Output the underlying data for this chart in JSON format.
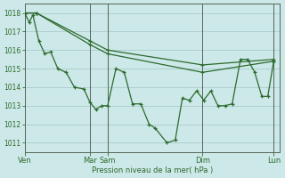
{
  "bg_color": "#cce8e8",
  "grid_color": "#aacccc",
  "line_color": "#2d6a2d",
  "xlabel": "Pression niveau de la mer( hPa )",
  "ylim": [
    1010.5,
    1018.5
  ],
  "yticks": [
    1011,
    1012,
    1013,
    1014,
    1015,
    1016,
    1017,
    1018
  ],
  "xtick_labels": [
    "Ven",
    "Mar",
    "Sam",
    "Dim",
    "Lun"
  ],
  "xtick_positions": [
    0,
    55,
    70,
    150,
    210
  ],
  "series1_x": [
    0,
    4,
    7,
    12,
    17,
    22,
    28,
    35,
    42,
    50,
    55,
    60,
    65,
    70,
    77,
    84,
    91,
    98,
    105,
    110,
    120,
    127,
    133,
    139,
    145,
    151,
    157,
    163,
    169,
    175,
    182,
    188,
    194,
    200,
    205,
    210
  ],
  "series1_y": [
    1018.0,
    1017.5,
    1017.9,
    1016.5,
    1015.8,
    1015.9,
    1015.0,
    1014.8,
    1014.0,
    1013.9,
    1013.2,
    1012.8,
    1013.0,
    1013.0,
    1015.0,
    1014.8,
    1013.1,
    1013.1,
    1012.0,
    1011.8,
    1011.0,
    1011.15,
    1013.4,
    1013.3,
    1013.8,
    1013.3,
    1013.8,
    1013.0,
    1013.0,
    1013.1,
    1015.5,
    1015.5,
    1014.8,
    1013.5,
    1013.5,
    1015.4
  ],
  "series2_x": [
    0,
    10,
    55,
    70,
    150,
    210
  ],
  "series2_y": [
    1018.0,
    1018.0,
    1016.5,
    1016.0,
    1015.2,
    1015.5
  ],
  "series3_x": [
    0,
    10,
    55,
    70,
    150,
    210
  ],
  "series3_y": [
    1018.0,
    1018.0,
    1016.3,
    1015.8,
    1014.8,
    1015.4
  ],
  "vlines": [
    0,
    55,
    70,
    150,
    210
  ]
}
